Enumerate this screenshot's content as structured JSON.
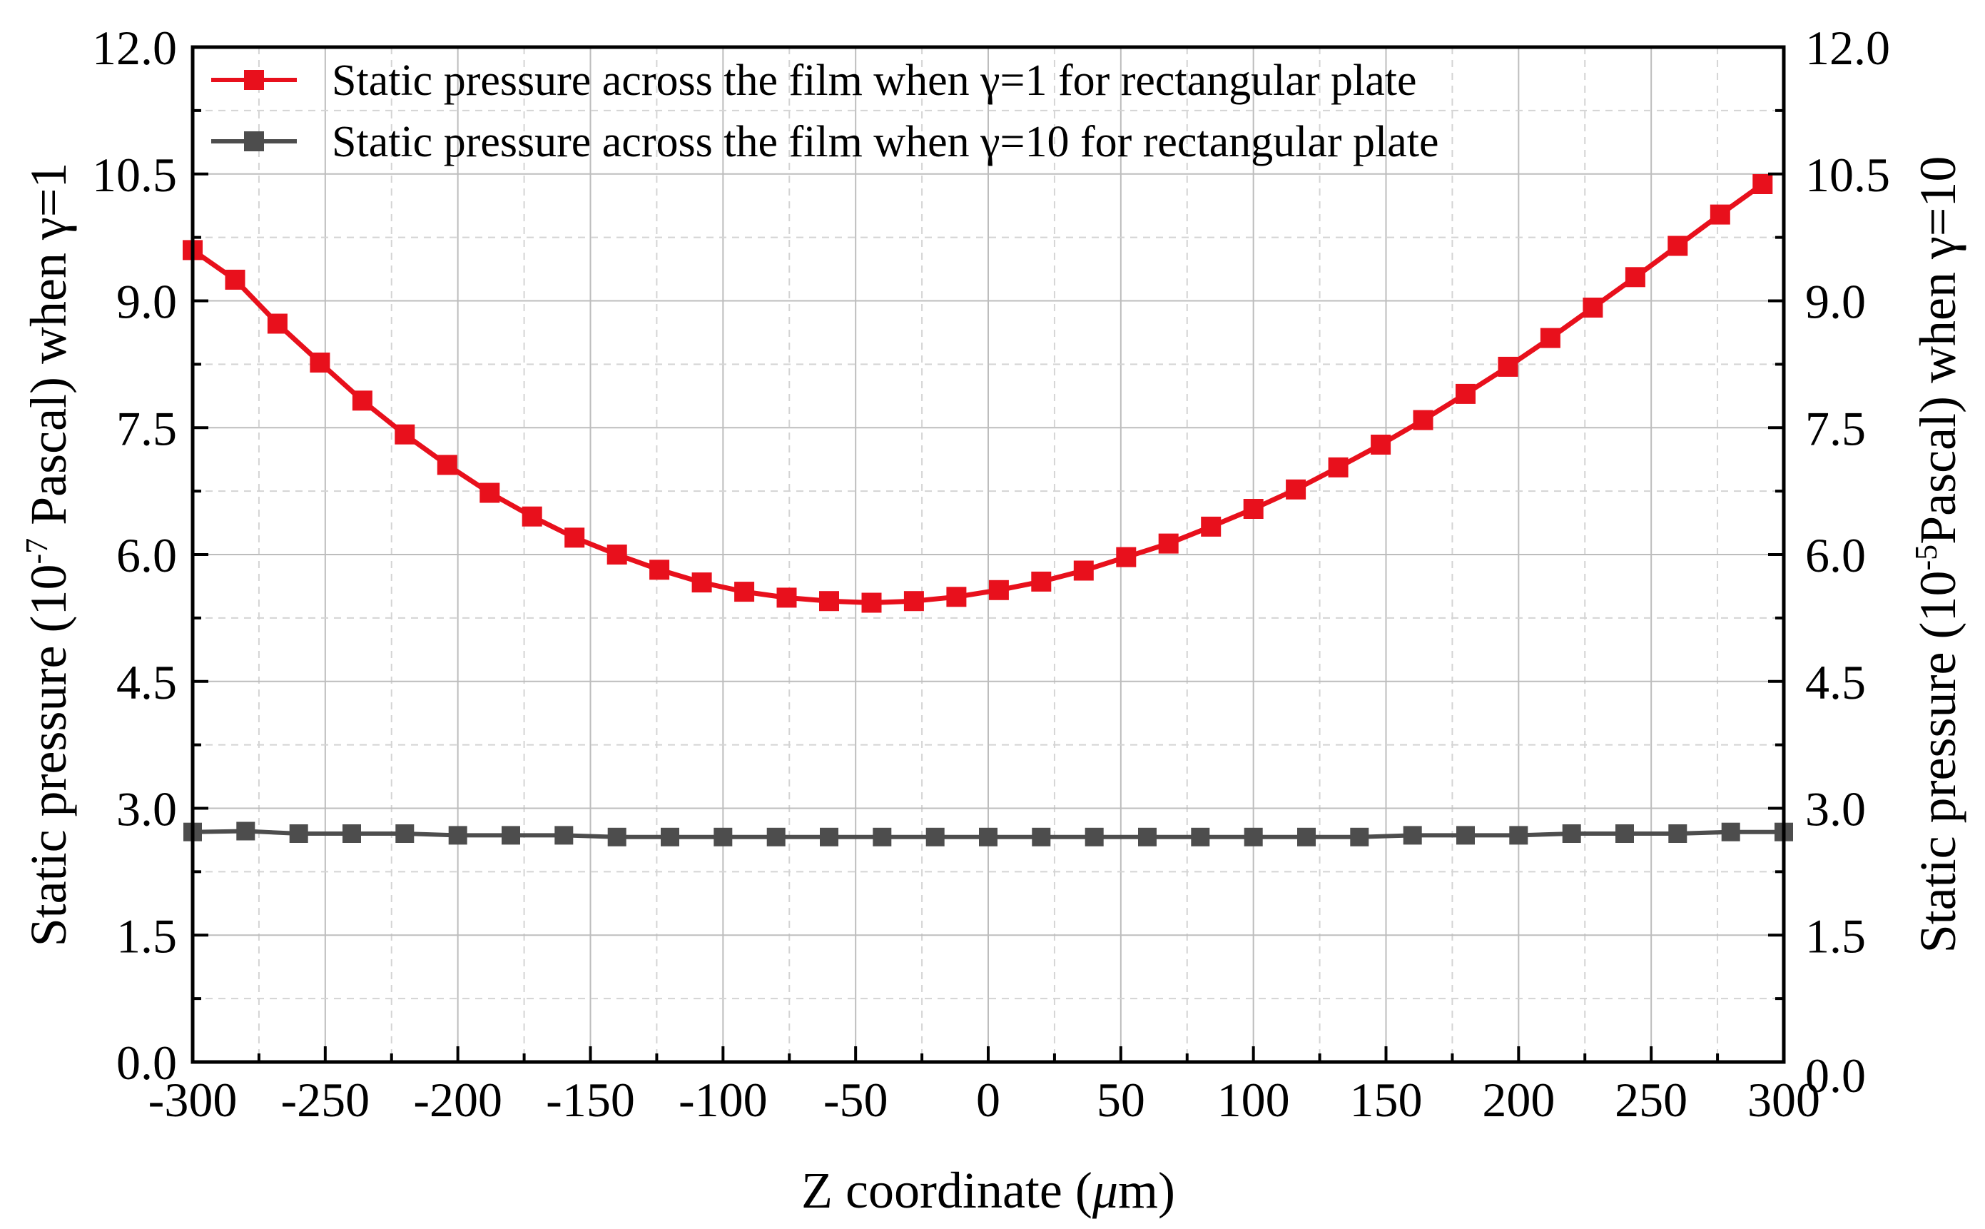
{
  "chart_data": {
    "type": "line",
    "xlabel": "Z coordinate (μm)",
    "xlabel_parts": {
      "prefix": "Z coordinate (",
      "mu": "μ",
      "suffix": "m)"
    },
    "ylabel_left": "Static pressure (10-7 Pascal) when γ=1",
    "ylabel_left_parts": {
      "prefix": "Static pressure (10",
      "exp": "-7",
      "suffix": " Pascal) when γ=1"
    },
    "ylabel_right": "Static pressure (10-5 Pascal) when γ=10",
    "ylabel_right_parts": {
      "prefix": "Static pressure (10",
      "exp": "-5",
      "suffix": "Pascal) when γ=10"
    },
    "xlim": [
      -300,
      300
    ],
    "ylim_left": [
      0,
      12
    ],
    "ylim_right": [
      0,
      12
    ],
    "x_ticks": [
      -300,
      -250,
      -200,
      -150,
      -100,
      -50,
      0,
      50,
      100,
      150,
      200,
      250,
      300
    ],
    "y_ticks_left": [
      "0.0",
      "1.5",
      "3.0",
      "4.5",
      "6.0",
      "7.5",
      "9.0",
      "10.5",
      "12.0"
    ],
    "y_ticks_right": [
      "0.0",
      "1.5",
      "3.0",
      "4.5",
      "6.0",
      "7.5",
      "9.0",
      "10.5",
      "12.0"
    ],
    "grid": true,
    "legend_position": "top",
    "series": [
      {
        "name": "Static pressure across the film when γ=1 for rectangular plate",
        "axis": "left",
        "color": "#e8101c",
        "marker": "square",
        "x": [
          -300,
          -284,
          -268,
          -252,
          -236,
          -220,
          -204,
          -188,
          -172,
          -156,
          -140,
          -124,
          -108,
          -92,
          -76,
          -60,
          -44,
          -28,
          -12,
          4,
          20,
          36,
          52,
          68,
          84,
          100,
          116,
          132,
          148,
          164,
          180,
          196,
          212,
          228,
          244,
          260,
          276,
          292
        ],
        "values": [
          9.6,
          9.25,
          8.73,
          8.27,
          7.82,
          7.42,
          7.06,
          6.73,
          6.45,
          6.2,
          6.0,
          5.82,
          5.67,
          5.56,
          5.49,
          5.45,
          5.43,
          5.45,
          5.5,
          5.58,
          5.68,
          5.81,
          5.97,
          6.13,
          6.33,
          6.54,
          6.77,
          7.03,
          7.3,
          7.59,
          7.9,
          8.22,
          8.56,
          8.92,
          9.28,
          9.65,
          10.02,
          10.38
        ]
      },
      {
        "name": "Static pressure across the film when γ=10 for rectangular plate",
        "axis": "right",
        "color": "#4d4d4d",
        "marker": "square",
        "x": [
          -300,
          -280,
          -260,
          -240,
          -220,
          -200,
          -180,
          -160,
          -140,
          -120,
          -100,
          -80,
          -60,
          -40,
          -20,
          0,
          20,
          40,
          60,
          80,
          100,
          120,
          140,
          160,
          180,
          200,
          220,
          240,
          260,
          280,
          300
        ],
        "values": [
          2.72,
          2.73,
          2.7,
          2.7,
          2.7,
          2.68,
          2.68,
          2.68,
          2.66,
          2.66,
          2.66,
          2.66,
          2.66,
          2.66,
          2.66,
          2.66,
          2.66,
          2.66,
          2.66,
          2.66,
          2.66,
          2.66,
          2.66,
          2.68,
          2.68,
          2.68,
          2.7,
          2.7,
          2.7,
          2.72,
          2.72
        ]
      }
    ]
  }
}
